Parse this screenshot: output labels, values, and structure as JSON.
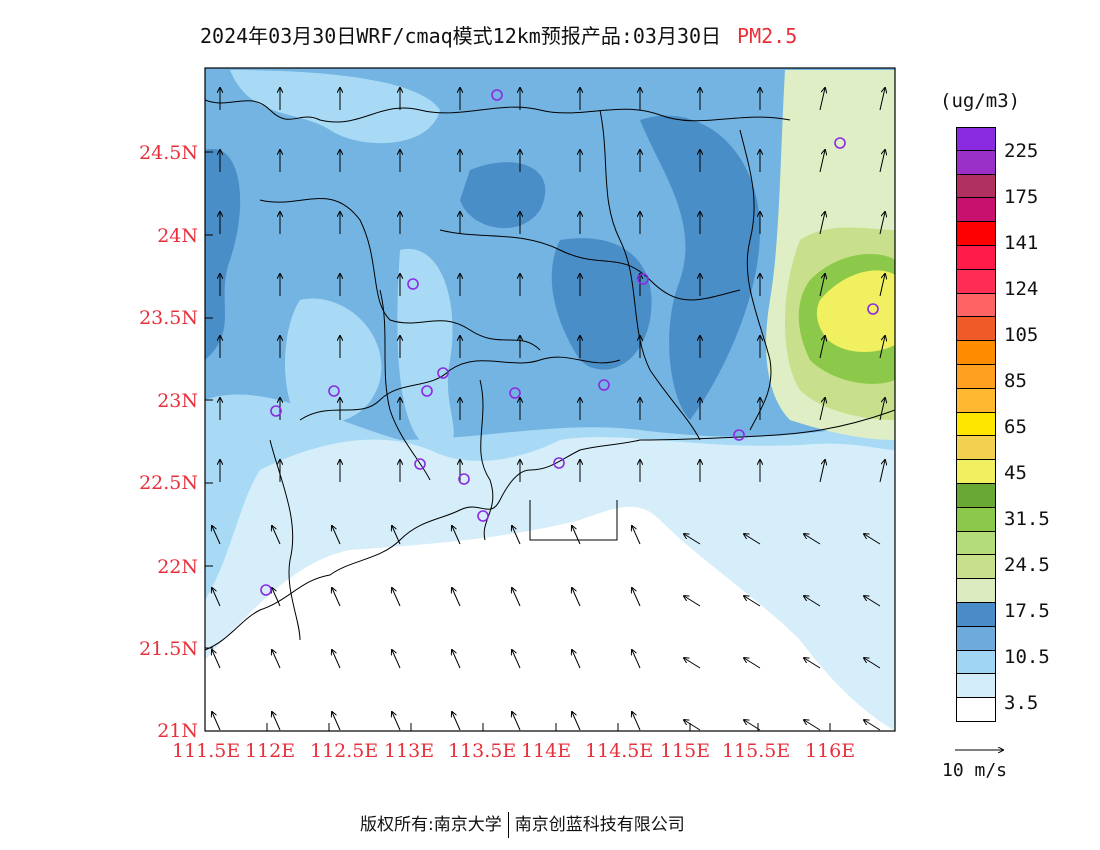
{
  "title": {
    "text": "2024年03月30日WRF/cmaq模式12km预报产品:03月30日",
    "variable": "PM2.5"
  },
  "axes": {
    "lat_labels": [
      "24.5N",
      "24N",
      "23.5N",
      "23N",
      "22.5N",
      "22N",
      "21.5N",
      "21N"
    ],
    "lon_labels": [
      "111.5E",
      "112E",
      "112.5E",
      "113E",
      "113.5E",
      "114E",
      "114.5E",
      "115E",
      "115.5E",
      "116E"
    ]
  },
  "legend": {
    "unit": "(ug/m3)",
    "labels": [
      "225",
      "175",
      "141",
      "124",
      "105",
      "85",
      "65",
      "45",
      "31.5",
      "24.5",
      "17.5",
      "10.5",
      "3.5"
    ],
    "colors": [
      "#8a2be2",
      "#9b30c8",
      "#b03060",
      "#c8106e",
      "#ff0000",
      "#ff1a4a",
      "#ff2d55",
      "#ff6464",
      "#f05a28",
      "#ff8c00",
      "#ffa020",
      "#ffb830",
      "#ffe600",
      "#f2d050",
      "#f0f060",
      "#6aa834",
      "#8cc84a",
      "#b4dc78",
      "#c8e08c",
      "#dceac0",
      "#4a8cc8",
      "#6eaadc",
      "#a0d6f4",
      "#d2ecfa",
      "#ffffff"
    ],
    "ref_wind": "10 m/s"
  },
  "footer": {
    "copyright": "版权所有:南京大学",
    "company": "南京创蓝科技有限公司"
  },
  "map_colors": {
    "ocean": "#ffffff",
    "light": "#d6eefa",
    "mid": "#a8daf5",
    "blue": "#74b4e2",
    "deep": "#4a8ec8",
    "green_pale": "#dfeec4",
    "green": "#c8e08c",
    "green_dark": "#8cc84a",
    "yellow": "#f0f060"
  }
}
